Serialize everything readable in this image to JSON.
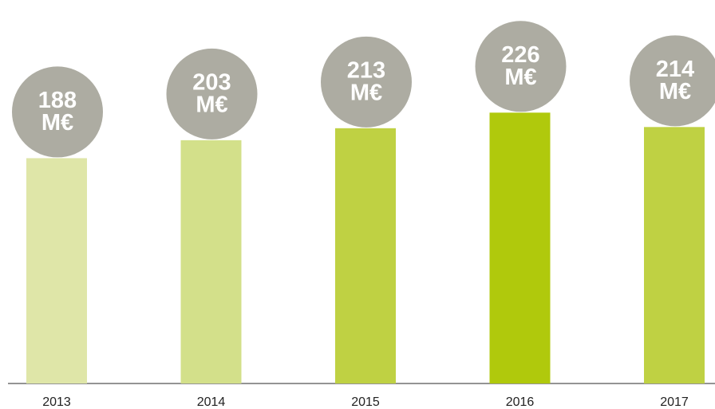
{
  "chart_data": {
    "type": "bar",
    "categories": [
      "2013",
      "2014",
      "2015",
      "2016",
      "2017"
    ],
    "values": [
      188,
      203,
      213,
      226,
      214
    ],
    "unit": "M€",
    "colors": [
      "#dfe6a8",
      "#d3e08a",
      "#bfd143",
      "#b0c90c",
      "#bfd143"
    ],
    "bubble_color": "#adaca2",
    "ylim": [
      0,
      320
    ]
  }
}
